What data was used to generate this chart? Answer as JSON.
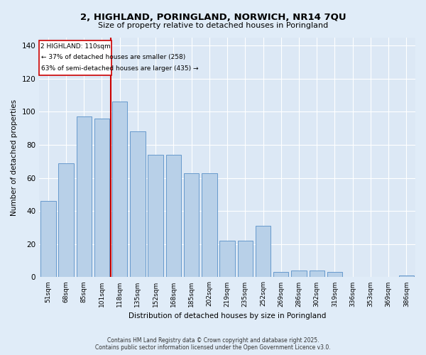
{
  "title": "2, HIGHLAND, PORINGLAND, NORWICH, NR14 7QU",
  "subtitle": "Size of property relative to detached houses in Poringland",
  "xlabel": "Distribution of detached houses by size in Poringland",
  "ylabel": "Number of detached properties",
  "footer_line1": "Contains HM Land Registry data © Crown copyright and database right 2025.",
  "footer_line2": "Contains public sector information licensed under the Open Government Licence v3.0.",
  "categories": [
    "51sqm",
    "68sqm",
    "85sqm",
    "101sqm",
    "118sqm",
    "135sqm",
    "152sqm",
    "168sqm",
    "185sqm",
    "202sqm",
    "219sqm",
    "235sqm",
    "252sqm",
    "269sqm",
    "286sqm",
    "302sqm",
    "319sqm",
    "336sqm",
    "353sqm",
    "369sqm",
    "386sqm"
  ],
  "values": [
    46,
    69,
    97,
    96,
    106,
    88,
    74,
    74,
    63,
    63,
    22,
    22,
    31,
    3,
    4,
    4,
    3,
    0,
    0,
    0,
    1
  ],
  "bar_color": "#b8d0e8",
  "bar_edge_color": "#6699cc",
  "marker_bin_index": 3,
  "marker_label": "2 HIGHLAND: 110sqm",
  "annotation_line1": "← 37% of detached houses are smaller (258)",
  "annotation_line2": "63% of semi-detached houses are larger (435) →",
  "marker_color": "#cc0000",
  "annotation_box_color": "#cc0000",
  "ylim": [
    0,
    145
  ],
  "yticks": [
    0,
    20,
    40,
    60,
    80,
    100,
    120,
    140
  ],
  "bg_color": "#dce8f5",
  "plot_bg_color": "#dce8f5",
  "fig_bg_color": "#e0ecf8"
}
